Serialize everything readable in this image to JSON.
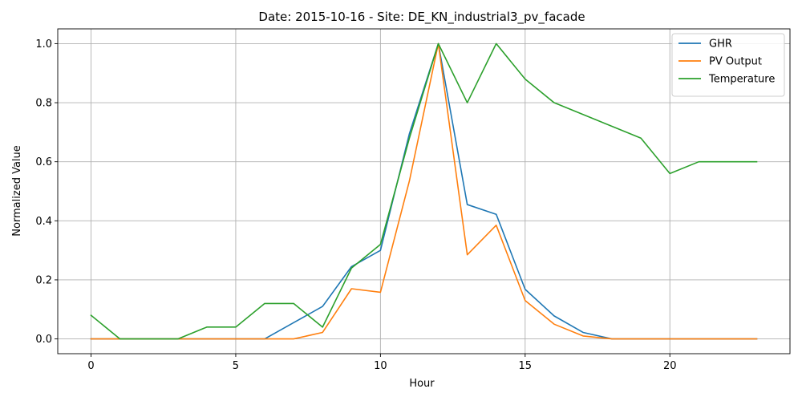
{
  "chart_data": {
    "type": "line",
    "title": "Date: 2015-10-16 - Site: DE_KN_industrial3_pv_facade",
    "xlabel": "Hour",
    "ylabel": "Normalized Value",
    "xlim": [
      -1.15,
      24.15
    ],
    "ylim": [
      -0.05,
      1.05
    ],
    "xticks": [
      0,
      5,
      10,
      15,
      20
    ],
    "yticks": [
      0.0,
      0.2,
      0.4,
      0.6,
      0.8,
      1.0
    ],
    "xtick_labels": [
      "0",
      "5",
      "10",
      "15",
      "20"
    ],
    "ytick_labels": [
      "0.0",
      "0.2",
      "0.4",
      "0.6",
      "0.8",
      "1.0"
    ],
    "grid": true,
    "legend_position": "top-right",
    "x": [
      0,
      1,
      2,
      3,
      4,
      5,
      6,
      7,
      8,
      9,
      10,
      11,
      12,
      13,
      14,
      15,
      16,
      17,
      18,
      19,
      20,
      21,
      22,
      23
    ],
    "series": [
      {
        "name": "GHR",
        "color": "#1f77b4",
        "values": [
          0,
          0,
          0,
          0,
          0,
          0,
          0,
          0.055,
          0.11,
          0.245,
          0.3,
          0.695,
          1.0,
          0.455,
          0.422,
          0.168,
          0.078,
          0.022,
          0,
          0,
          0,
          0,
          0,
          0
        ]
      },
      {
        "name": "PV Output",
        "color": "#ff7f0e",
        "values": [
          0,
          0,
          0,
          0,
          0,
          0,
          0,
          0,
          0.022,
          0.17,
          0.158,
          0.535,
          1.0,
          0.285,
          0.385,
          0.13,
          0.05,
          0.01,
          0,
          0,
          0,
          0,
          0,
          0
        ]
      },
      {
        "name": "Temperature",
        "color": "#2ca02c",
        "values": [
          0.08,
          0,
          0,
          0,
          0.04,
          0.04,
          0.12,
          0.12,
          0.04,
          0.24,
          0.32,
          0.68,
          1.0,
          0.8,
          1.0,
          0.88,
          0.8,
          0.76,
          0.72,
          0.68,
          0.56,
          0.6,
          0.6,
          0.6
        ]
      }
    ]
  }
}
